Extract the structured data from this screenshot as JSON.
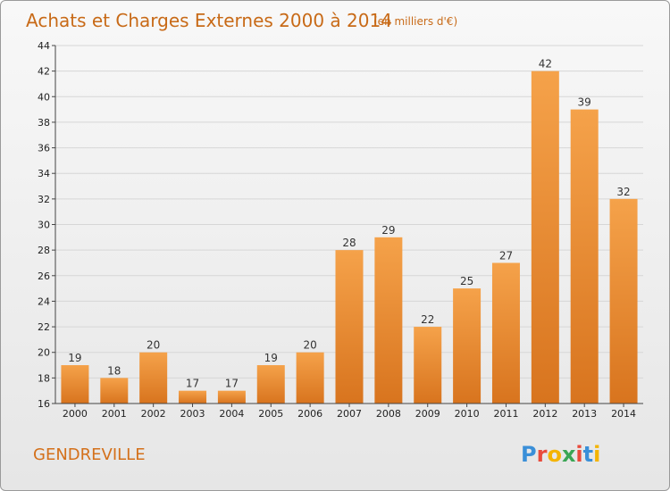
{
  "title": "Achats et Charges Externes 2000 à 2014",
  "subtitle": "(en milliers d'€)",
  "commune": "GENDREVILLE",
  "logo": "Proxiti",
  "colors": {
    "bar_light": "#f5a24a",
    "bar_dark": "#d8741e",
    "title": "#c86a17"
  },
  "chart_data": {
    "type": "bar",
    "categories": [
      "2000",
      "2001",
      "2002",
      "2003",
      "2004",
      "2005",
      "2006",
      "2007",
      "2008",
      "2009",
      "2010",
      "2011",
      "2012",
      "2013",
      "2014"
    ],
    "values": [
      19,
      18,
      20,
      17,
      17,
      19,
      20,
      28,
      29,
      22,
      25,
      27,
      42,
      39,
      32
    ],
    "title": "Achats et Charges Externes 2000 à 2014",
    "subtitle": "(en milliers d'€)",
    "xlabel": "",
    "ylabel": "",
    "ylim": [
      16,
      44
    ],
    "yticks": [
      16,
      18,
      20,
      22,
      24,
      26,
      28,
      30,
      32,
      34,
      36,
      38,
      40,
      42,
      44
    ],
    "grid": true
  }
}
